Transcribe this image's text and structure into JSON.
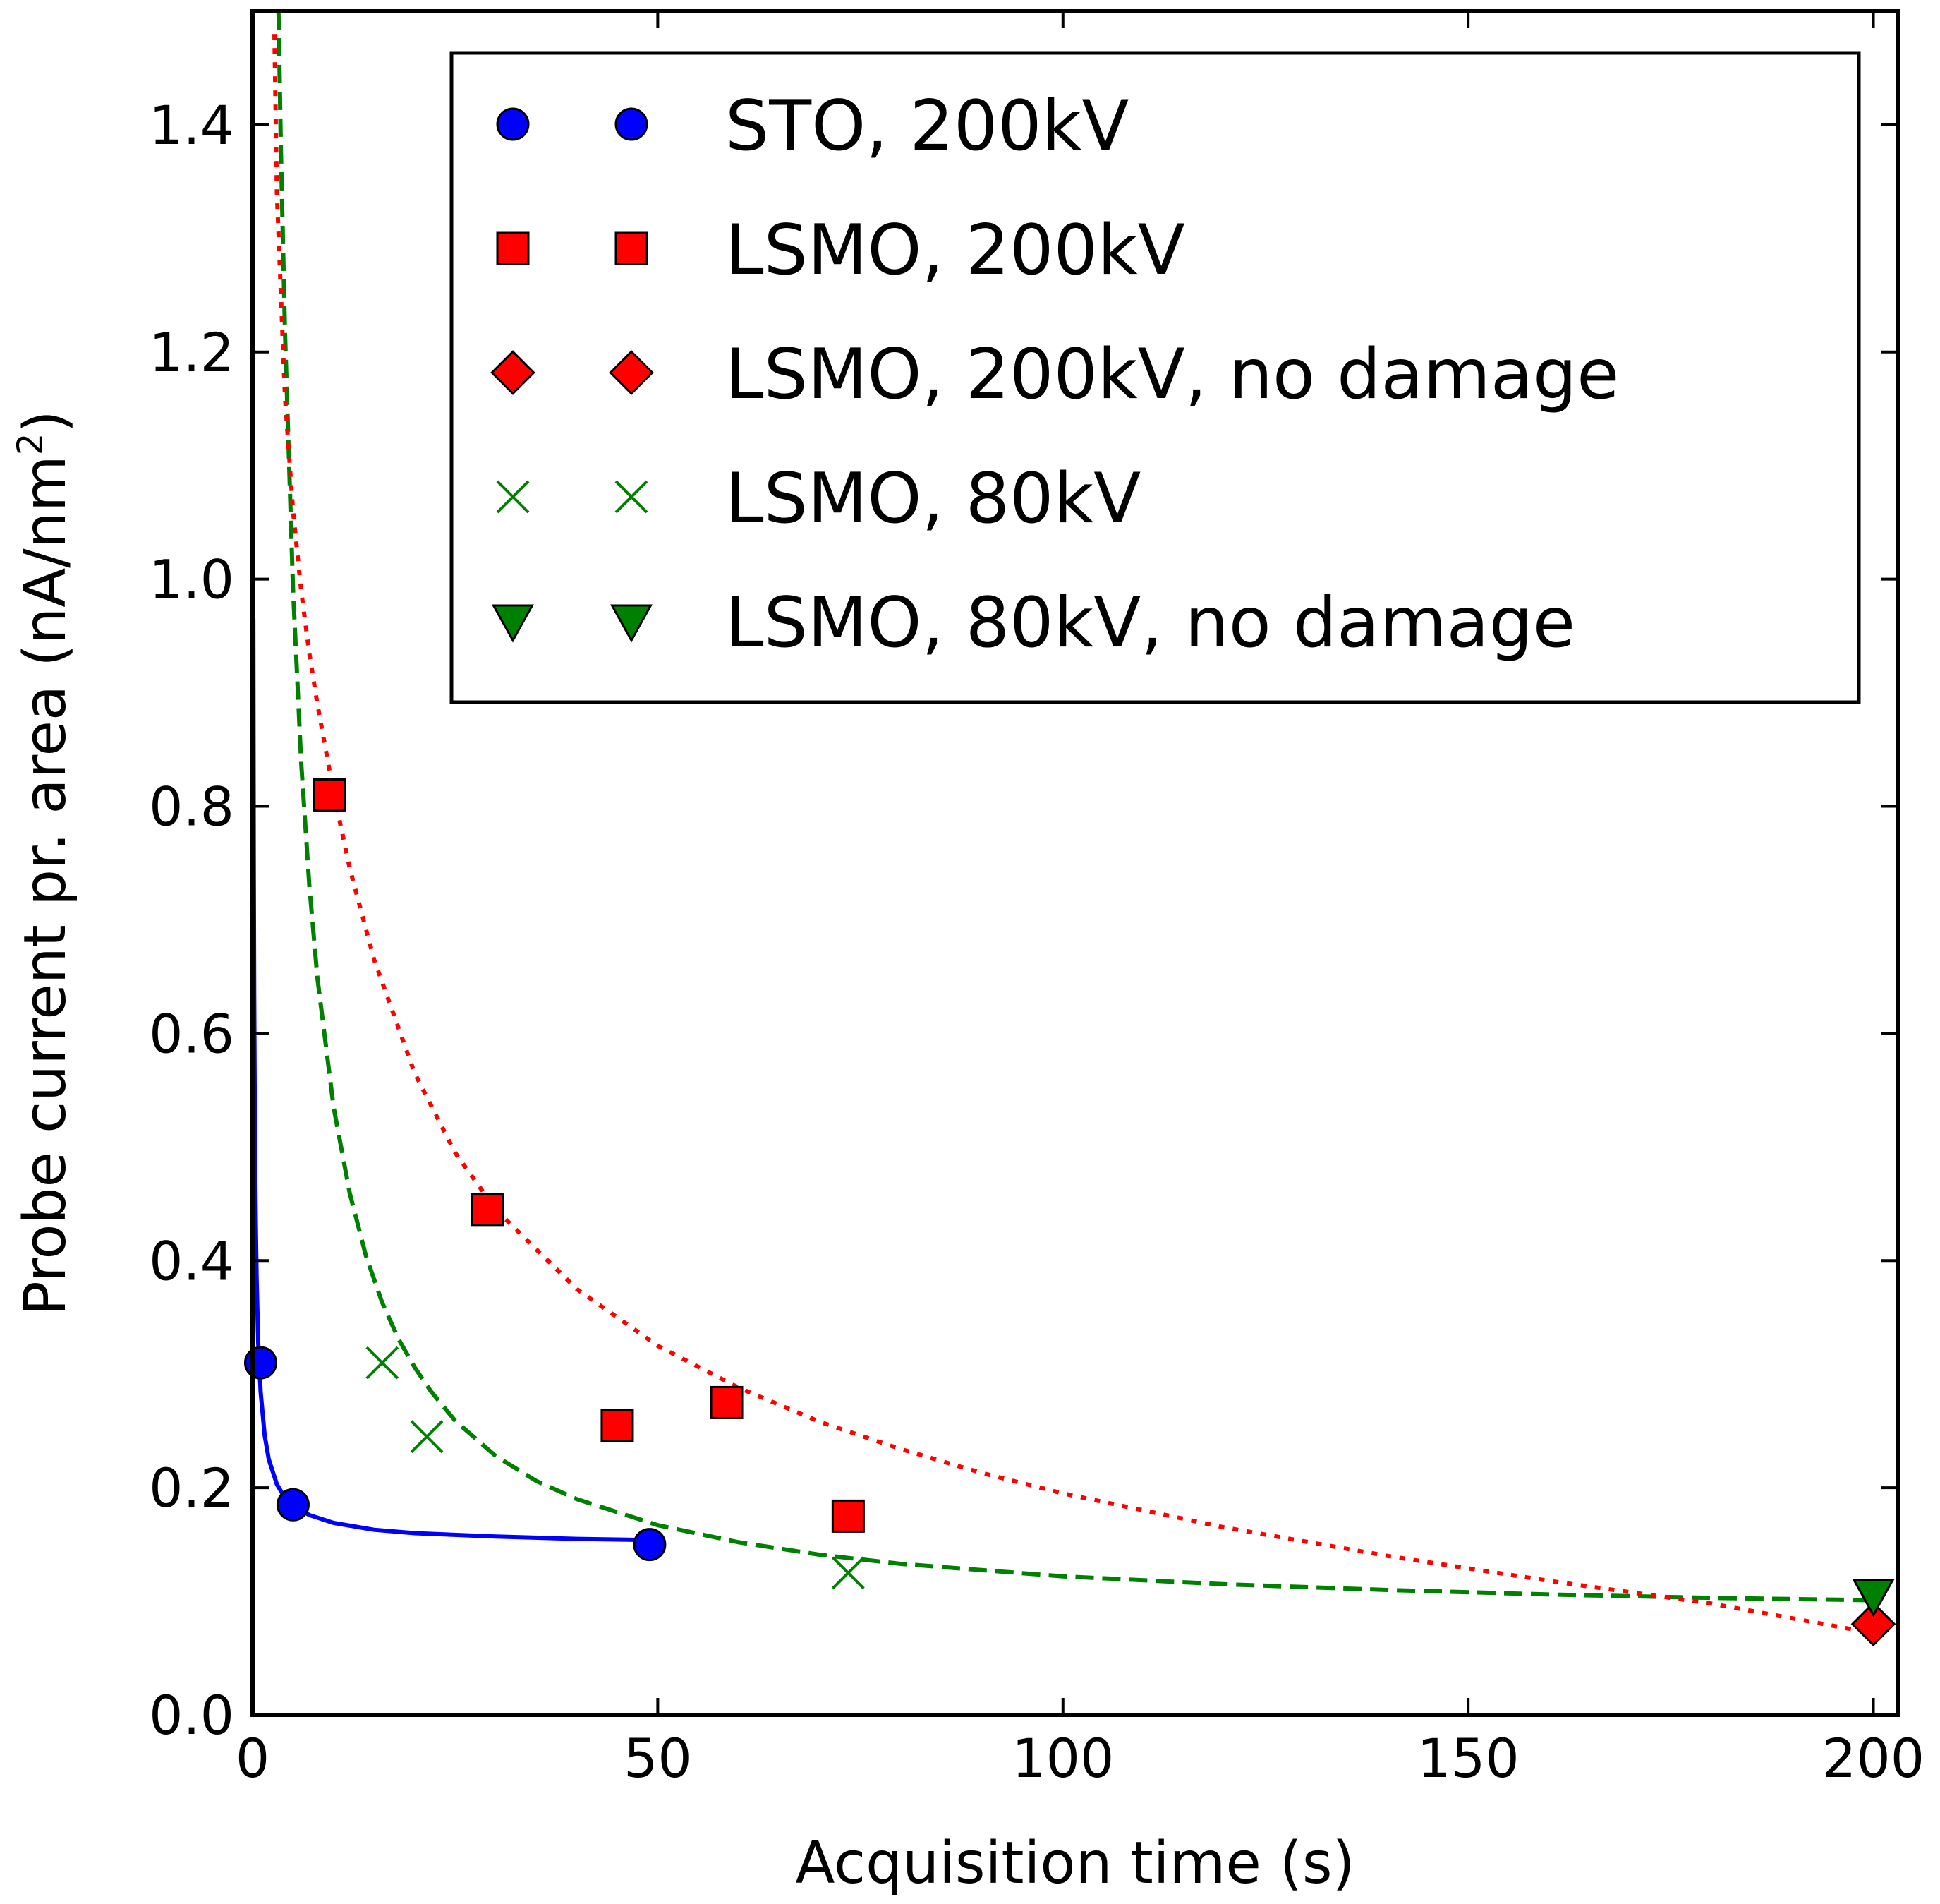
{
  "chart_data": {
    "type": "scatter",
    "title": "",
    "xlabel": "Acquisition time (s)",
    "ylabel_main": "Probe current pr. area (nA/nm",
    "ylabel_sup": "2",
    "ylabel_close": ")",
    "xlim": [
      0,
      203
    ],
    "ylim": [
      0,
      1.5
    ],
    "x_ticks": [
      0,
      50,
      100,
      150,
      200
    ],
    "y_ticks": [
      0,
      0.2,
      0.4,
      0.6,
      0.8,
      1.0,
      1.2,
      1.4
    ],
    "x_tick_labels": [
      "0",
      "50",
      "100",
      "150",
      "200"
    ],
    "y_tick_labels": [
      "0.0",
      "0.2",
      "0.4",
      "0.6",
      "0.8",
      "1.0",
      "1.2",
      "1.4"
    ],
    "grid": false,
    "legend_position": "top-right",
    "series": [
      {
        "name": "STO, 200kV",
        "marker": "circle",
        "color": "#0000ff",
        "points": [
          [
            1,
            0.31
          ],
          [
            5,
            0.185
          ],
          [
            49,
            0.15
          ]
        ]
      },
      {
        "name": "LSMO, 200kV",
        "marker": "square",
        "color": "#ff0000",
        "points": [
          [
            9.5,
            0.81
          ],
          [
            29,
            0.445
          ],
          [
            45,
            0.255
          ],
          [
            58.5,
            0.275
          ],
          [
            73.5,
            0.175
          ]
        ]
      },
      {
        "name": "LSMO, 200kV, no damage",
        "marker": "diamond",
        "color": "#ff0000",
        "points": [
          [
            200,
            0.08
          ]
        ]
      },
      {
        "name": "LSMO, 80kV",
        "marker": "x",
        "color": "#008000",
        "points": [
          [
            16,
            0.31
          ],
          [
            21.5,
            0.245
          ],
          [
            73.5,
            0.125
          ]
        ]
      },
      {
        "name": "LSMO, 80kV, no damage",
        "marker": "triangle-down",
        "color": "#008000",
        "points": [
          [
            200,
            0.105
          ]
        ]
      }
    ],
    "fit_curves": [
      {
        "name": "STO fit",
        "style": "solid",
        "color": "#0000ff",
        "x": [
          0.1,
          0.15,
          0.2,
          0.3,
          0.4,
          0.5,
          0.7,
          1,
          1.5,
          2,
          3,
          4,
          5,
          7,
          10,
          15,
          20,
          30,
          40,
          49
        ],
        "y": [
          0.965,
          0.755,
          0.636,
          0.504,
          0.432,
          0.386,
          0.328,
          0.284,
          0.246,
          0.225,
          0.203,
          0.191,
          0.184,
          0.176,
          0.169,
          0.163,
          0.16,
          0.157,
          0.155,
          0.154
        ]
      },
      {
        "name": "LSMO 80kV fit",
        "style": "dashed",
        "color": "#008000",
        "x": [
          3.2,
          3.5,
          4,
          5,
          6,
          7,
          8,
          10,
          12,
          14,
          16,
          18,
          20,
          22,
          25,
          30,
          35,
          40,
          50,
          60,
          70,
          80,
          100,
          120,
          140,
          160,
          180,
          200
        ],
        "y": [
          1.5,
          1.378,
          1.217,
          0.991,
          0.839,
          0.731,
          0.649,
          0.535,
          0.459,
          0.404,
          0.363,
          0.331,
          0.306,
          0.285,
          0.259,
          0.228,
          0.206,
          0.19,
          0.167,
          0.152,
          0.141,
          0.133,
          0.122,
          0.115,
          0.11,
          0.106,
          0.103,
          0.101
        ]
      },
      {
        "name": "LSMO 200kV fit",
        "style": "dotted",
        "color": "#ff0000",
        "x": [
          2.7,
          3,
          4,
          5,
          6,
          7,
          8,
          10,
          12,
          15,
          20,
          25,
          30,
          40,
          50,
          60,
          70,
          80,
          90,
          100,
          120,
          140,
          160,
          180,
          200
        ],
        "y": [
          1.48,
          1.34,
          1.16,
          1.06,
          0.99,
          0.935,
          0.89,
          0.812,
          0.745,
          0.665,
          0.565,
          0.495,
          0.445,
          0.375,
          0.325,
          0.288,
          0.258,
          0.234,
          0.213,
          0.195,
          0.165,
          0.14,
          0.118,
          0.098,
          0.072
        ]
      }
    ]
  }
}
